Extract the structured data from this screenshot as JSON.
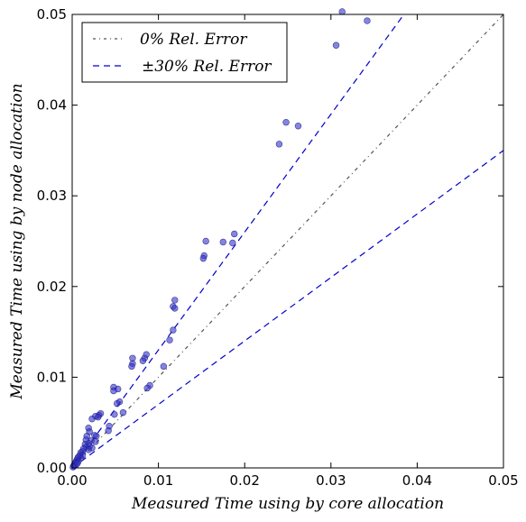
{
  "chart_data": {
    "type": "scatter",
    "xlabel": "Measured Time using by core allocation",
    "ylabel": "Measured Time using by node allocation",
    "xlim": [
      0,
      0.05
    ],
    "ylim": [
      0,
      0.05
    ],
    "x_ticks": [
      "0.00",
      "0.01",
      "0.02",
      "0.03",
      "0.04",
      "0.05"
    ],
    "y_ticks": [
      "0.00",
      "0.01",
      "0.02",
      "0.03",
      "0.04",
      "0.05"
    ],
    "grid": false,
    "legend_position": "top-left",
    "legend": [
      {
        "label": "0% Rel. Error",
        "style": "dash-dot",
        "color": "#555555"
      },
      {
        "label": "±30% Rel. Error",
        "style": "dashed",
        "color": "#0000cc"
      }
    ],
    "reference_lines": [
      {
        "name": "0% Rel. Error",
        "slope": 1.0,
        "color": "#555555",
        "style": "dash-dot"
      },
      {
        "name": "+30% Rel. Error",
        "slope": 1.3,
        "color": "#0000cc",
        "style": "dashed"
      },
      {
        "name": "-30% Rel. Error",
        "slope": 0.7,
        "color": "#0000cc",
        "style": "dashed"
      }
    ],
    "point_color": "#3333cc",
    "points": [
      [
        0.0313,
        0.0503
      ],
      [
        0.0342,
        0.0493
      ],
      [
        0.0306,
        0.0466
      ],
      [
        0.0248,
        0.0381
      ],
      [
        0.0262,
        0.0377
      ],
      [
        0.024,
        0.0357
      ],
      [
        0.0188,
        0.0258
      ],
      [
        0.0155,
        0.025
      ],
      [
        0.0175,
        0.0249
      ],
      [
        0.0186,
        0.0248
      ],
      [
        0.0153,
        0.0234
      ],
      [
        0.0152,
        0.0231
      ],
      [
        0.0119,
        0.0185
      ],
      [
        0.0117,
        0.0178
      ],
      [
        0.0119,
        0.0176
      ],
      [
        0.0117,
        0.0152
      ],
      [
        0.0113,
        0.0141
      ],
      [
        0.0106,
        0.0112
      ],
      [
        0.0086,
        0.0125
      ],
      [
        0.0084,
        0.0121
      ],
      [
        0.0082,
        0.0118
      ],
      [
        0.007,
        0.0121
      ],
      [
        0.007,
        0.0115
      ],
      [
        0.0069,
        0.0112
      ],
      [
        0.009,
        0.0091
      ],
      [
        0.0087,
        0.0088
      ],
      [
        0.0053,
        0.0087
      ],
      [
        0.0048,
        0.0089
      ],
      [
        0.0048,
        0.0085
      ],
      [
        0.0055,
        0.0073
      ],
      [
        0.0052,
        0.0071
      ],
      [
        0.0059,
        0.0061
      ],
      [
        0.0049,
        0.0059
      ],
      [
        0.0043,
        0.0046
      ],
      [
        0.0042,
        0.0041
      ],
      [
        0.0033,
        0.006
      ],
      [
        0.0031,
        0.0058
      ],
      [
        0.003,
        0.0056
      ],
      [
        0.0027,
        0.0057
      ],
      [
        0.0023,
        0.0054
      ],
      [
        0.0028,
        0.0035
      ],
      [
        0.0026,
        0.0036
      ],
      [
        0.0027,
        0.0029
      ],
      [
        0.0019,
        0.0044
      ],
      [
        0.002,
        0.004
      ],
      [
        0.0017,
        0.0035
      ],
      [
        0.0016,
        0.0031
      ],
      [
        0.0022,
        0.003
      ],
      [
        0.0019,
        0.0027
      ],
      [
        0.0015,
        0.0026
      ],
      [
        0.0016,
        0.0023
      ],
      [
        0.002,
        0.0024
      ],
      [
        0.0023,
        0.0022
      ],
      [
        0.0019,
        0.002
      ],
      [
        0.0013,
        0.0021
      ],
      [
        0.0012,
        0.0018
      ],
      [
        0.001,
        0.0017
      ],
      [
        0.0012,
        0.0014
      ],
      [
        0.0009,
        0.0014
      ],
      [
        0.001,
        0.0011
      ],
      [
        0.0007,
        0.0012
      ],
      [
        0.0006,
        0.001
      ],
      [
        0.0005,
        0.0008
      ],
      [
        0.0007,
        0.0007
      ],
      [
        0.0004,
        0.0006
      ],
      [
        0.0003,
        0.0005
      ],
      [
        0.0004,
        0.0003
      ],
      [
        0.0002,
        0.0003
      ],
      [
        0.0002,
        0.0002
      ],
      [
        0.0001,
        0.0001
      ],
      [
        0.0006,
        0.0005
      ]
    ]
  }
}
